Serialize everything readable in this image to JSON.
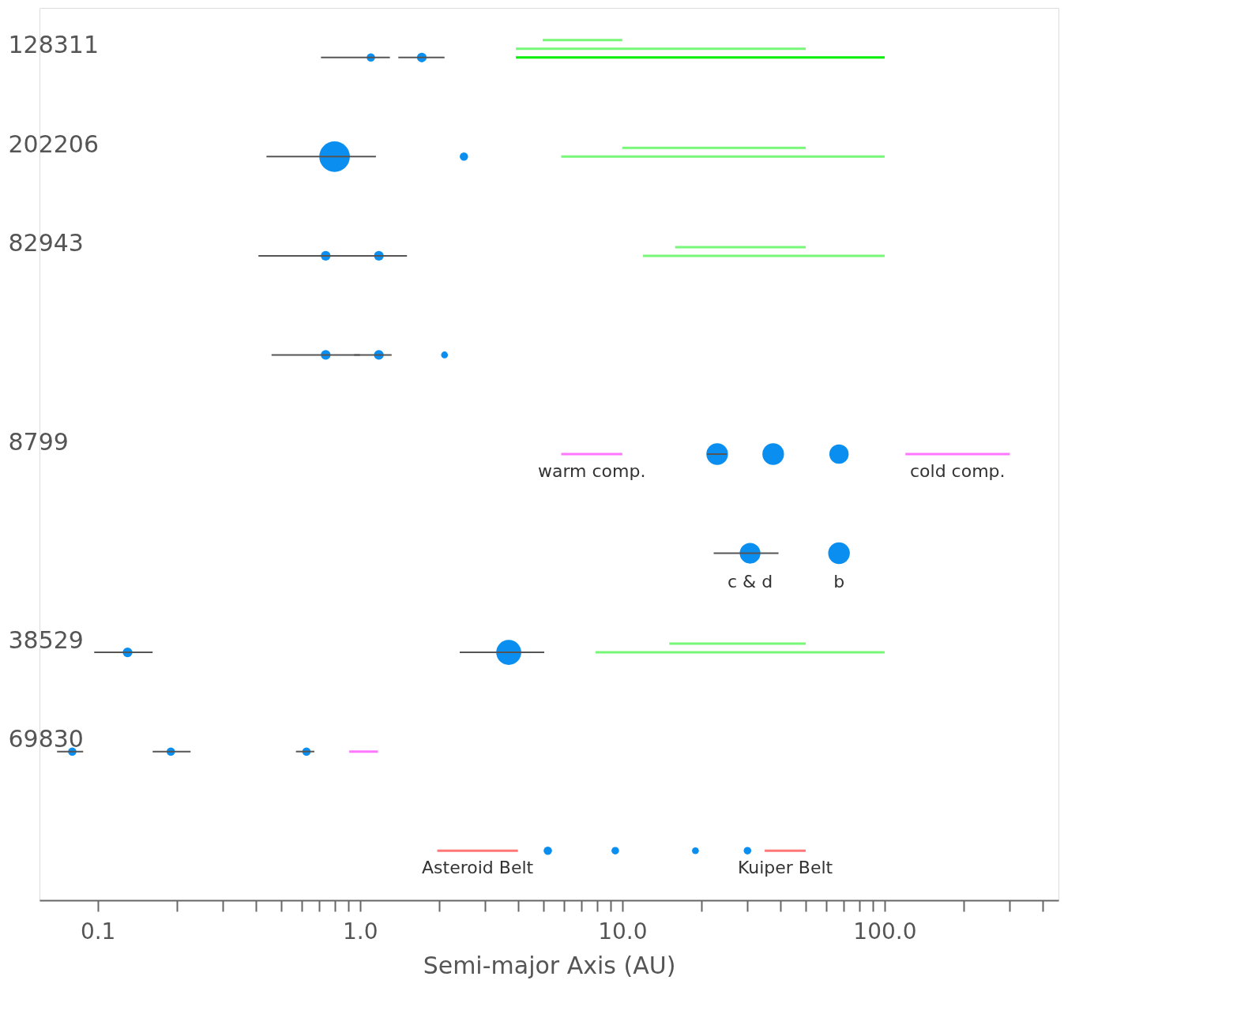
{
  "chart_data": {
    "type": "bubble",
    "orientation": "horizontal",
    "xlabel": "Semi-major Axis (AU)",
    "log": "x",
    "categories": [
      "128311",
      "202206",
      "82943",
      null,
      "8799",
      null,
      "38529",
      "69830",
      null
    ],
    "xlim": [
      0.06,
      460
    ],
    "xticks": [
      0.1,
      {
        "value": 0.2,
        "label": null
      },
      {
        "value": 0.3,
        "label": null
      },
      {
        "value": 0.4,
        "label": null
      },
      {
        "value": 0.5,
        "label": null
      },
      {
        "value": 0.6,
        "label": null
      },
      {
        "value": 0.7,
        "label": null
      },
      {
        "value": 0.8,
        "label": null
      },
      {
        "value": 0.9,
        "label": null
      },
      {
        "value": 1,
        "label": "1.0"
      },
      {
        "value": 2,
        "label": null
      },
      {
        "value": 3,
        "label": null
      },
      {
        "value": 4,
        "label": null
      },
      {
        "value": 5,
        "label": null
      },
      {
        "value": 6,
        "label": null
      },
      {
        "value": 7,
        "label": null
      },
      {
        "value": 8,
        "label": null
      },
      {
        "value": 9,
        "label": null
      },
      {
        "value": 10,
        "label": "10.0"
      },
      {
        "value": 20,
        "label": null
      },
      {
        "value": 30,
        "label": null
      },
      {
        "value": 40,
        "label": null
      },
      {
        "value": 50,
        "label": null
      },
      {
        "value": 60,
        "label": null
      },
      {
        "value": 70,
        "label": null
      },
      {
        "value": 80,
        "label": null
      },
      {
        "value": 90,
        "label": null
      },
      {
        "value": 100,
        "label": "100.0"
      },
      {
        "value": 200,
        "label": null
      },
      {
        "value": 300,
        "label": null
      },
      {
        "value": 400,
        "label": null
      }
    ],
    "grid": false,
    "series": [
      {
        "type": "bar",
        "color": "#77f777",
        "base": [
          4.97,
          10,
          15.9,
          null,
          null,
          null,
          15.1,
          null,
          null
        ],
        "values": [
          5.03,
          40,
          34.1,
          null,
          null,
          null,
          34.9,
          null,
          null
        ]
      },
      {
        "type": "bar",
        "color": "#77f777",
        "base": [
          3.93,
          5.85,
          12,
          null,
          null,
          null,
          7.9,
          null,
          null
        ],
        "values": [
          46.07,
          94.15,
          88,
          null,
          null,
          null,
          92.1,
          null,
          null
        ]
      },
      {
        "type": "bar",
        "color": "#00ee00",
        "base": [
          3.93,
          null,
          null,
          null,
          null,
          null,
          null,
          null,
          null
        ],
        "values": [
          96.07,
          null,
          null,
          null,
          null,
          null,
          null,
          null,
          null
        ]
      },
      {
        "type": "bar",
        "name": "warm comp.",
        "color": "#ff77ff",
        "base": [
          null,
          null,
          null,
          null,
          5.85,
          null,
          null,
          null,
          null
        ],
        "values": [
          null,
          null,
          null,
          null,
          4.15,
          null,
          null,
          null,
          null
        ]
      },
      {
        "type": "bar",
        "name": "cold comp.",
        "color": "#ff77ff",
        "base": [
          null,
          null,
          null,
          null,
          120,
          null,
          null,
          null,
          null
        ],
        "values": [
          null,
          null,
          null,
          null,
          180,
          null,
          null,
          null,
          null
        ]
      },
      {
        "type": "bar",
        "color": "#ff77ff",
        "base": [
          null,
          null,
          null,
          null,
          null,
          null,
          null,
          0.91,
          null
        ],
        "values": [
          null,
          null,
          null,
          null,
          null,
          null,
          null,
          0.26,
          null
        ]
      },
      {
        "type": "bar",
        "name": "Asteroid Belt",
        "color": "#ff7777",
        "base": [
          null,
          null,
          null,
          null,
          null,
          null,
          null,
          null,
          1.97
        ],
        "values": [
          null,
          null,
          null,
          null,
          null,
          null,
          null,
          null,
          2.03
        ]
      },
      {
        "type": "bar",
        "name": "Kuiper Belt",
        "color": "#ff7777",
        "base": [
          null,
          null,
          null,
          null,
          null,
          null,
          null,
          null,
          34.9
        ],
        "values": [
          null,
          null,
          null,
          null,
          null,
          null,
          null,
          null,
          15.1
        ]
      },
      {
        "color": "#0a8ff0",
        "values": [
          1.1,
          0.8,
          0.74,
          0.74,
          23,
          null,
          0.13,
          0.08,
          5.2
        ],
        "sizes": [
          0.074,
          1,
          0.1,
          0.1,
          0.5,
          null,
          0.1,
          0.074,
          0.074
        ],
        "errors": [
          [
            0.71,
            1.3
          ],
          [
            0.44,
            1.15
          ],
          [
            0.41,
            1.0
          ],
          [
            0.46,
            1.0
          ],
          [
            21,
            25
          ],
          null,
          [
            0.097,
            0.162
          ],
          [
            0.07,
            0.088
          ],
          null
        ]
      },
      {
        "color": "#0a8ff0",
        "values": [
          1.72,
          2.49,
          1.18,
          1.18,
          37.6,
          null,
          3.69,
          0.19,
          9.4
        ],
        "sizes": [
          0.1,
          0.074,
          0.1,
          0.1,
          0.5,
          null,
          0.67,
          0.074,
          0.06
        ],
        "errors": [
          [
            1.4,
            2.1
          ],
          null,
          [
            0.9,
            1.51
          ],
          [
            0.95,
            1.32
          ],
          null,
          null,
          [
            2.4,
            5.04
          ],
          [
            0.162,
            0.226
          ],
          null
        ]
      },
      {
        "color": "#0a8ff0",
        "values": [
          null,
          null,
          null,
          2.1,
          67,
          null,
          null,
          0.625,
          19
        ],
        "sizes": [
          null,
          null,
          null,
          0.05,
          0.4,
          null,
          null,
          0.074,
          0.05
        ],
        "errors": [
          null,
          null,
          null,
          null,
          null,
          null,
          null,
          [
            0.57,
            0.67
          ],
          null
        ]
      },
      {
        "color": "#0a8ff0",
        "values": [
          null,
          null,
          null,
          null,
          null,
          null,
          null,
          null,
          30
        ],
        "sizes": [
          null,
          null,
          null,
          null,
          null,
          null,
          null,
          null,
          0.06
        ]
      },
      {
        "name": "c & d",
        "color": "#0a8ff0",
        "values": [
          null,
          null,
          null,
          null,
          null,
          30.7,
          null,
          null,
          null
        ],
        "sizes": [
          null,
          null,
          null,
          null,
          null,
          0.46,
          null,
          null,
          null
        ],
        "errors": [
          null,
          null,
          null,
          null,
          null,
          [
            22.3,
            39.4
          ],
          null,
          null,
          null
        ]
      },
      {
        "name": "b",
        "color": "#0a8ff0",
        "values": [
          null,
          null,
          null,
          null,
          null,
          67,
          null,
          null,
          null
        ],
        "sizes": [
          null,
          null,
          null,
          null,
          null,
          0.5,
          null,
          null,
          null
        ]
      }
    ]
  }
}
